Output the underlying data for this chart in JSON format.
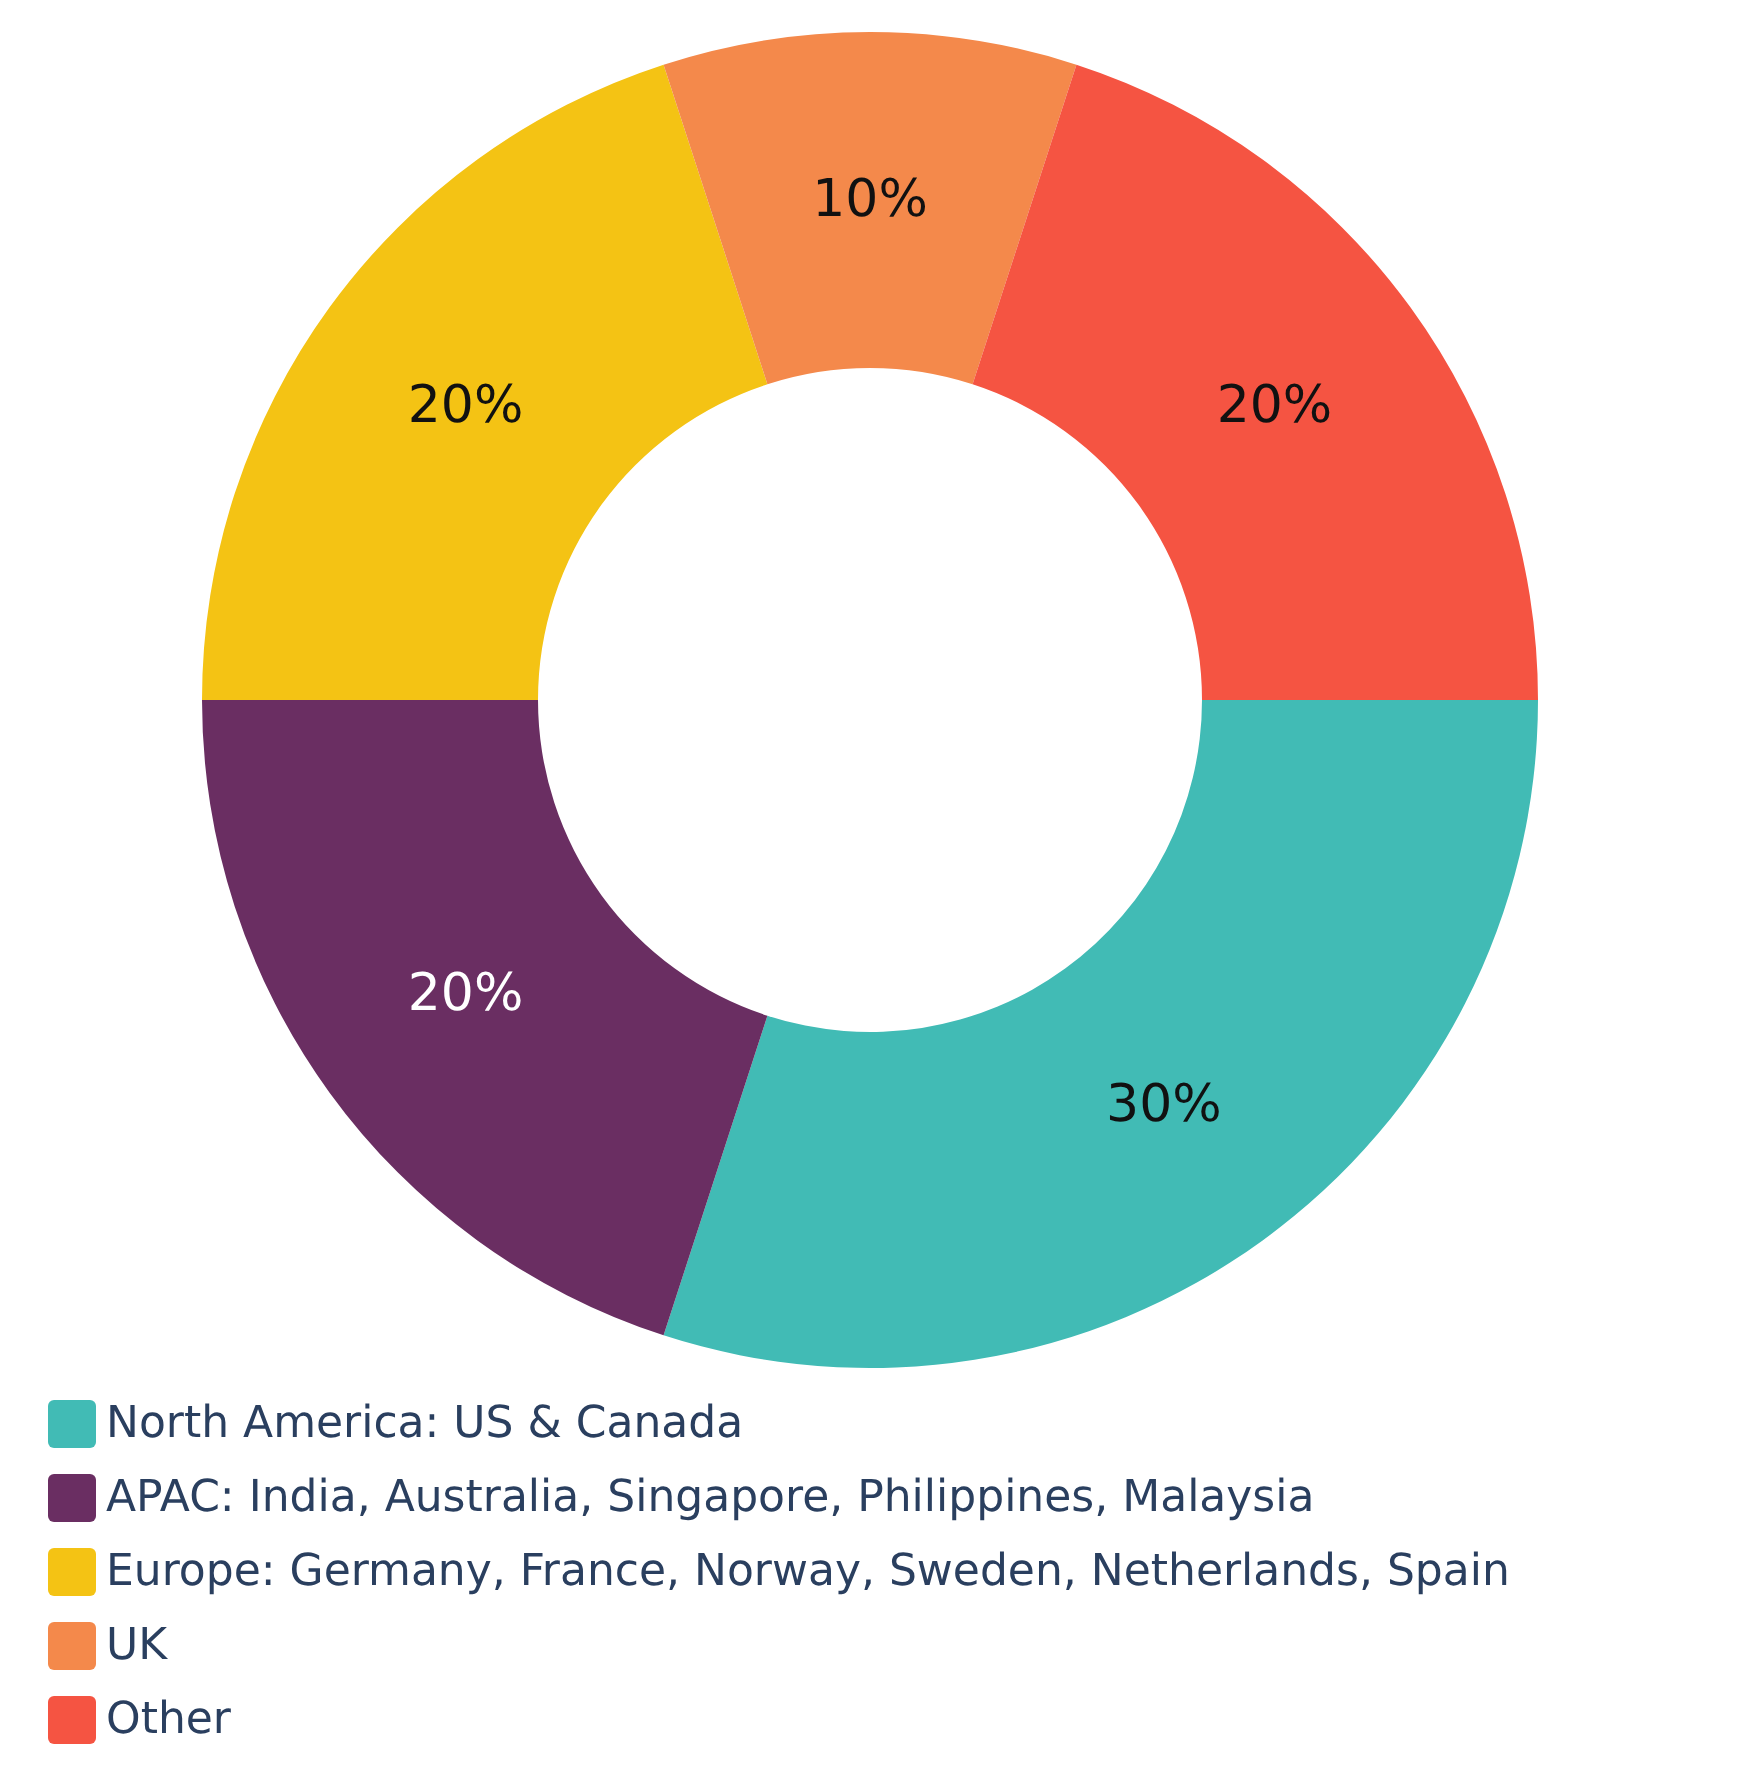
{
  "chart_data": {
    "type": "donut",
    "categories": [
      "North America: US & Canada",
      "APAC: India, Australia, Singapore, Philippines, Malaysia",
      "Europe: Germany, France, Norway, Sweden, Netherlands, Spain",
      "UK",
      "Other"
    ],
    "values": [
      30,
      20,
      20,
      10,
      20
    ],
    "colors": [
      "#41bbb5",
      "#6a2e62",
      "#f4c314",
      "#f4894b",
      "#f55442"
    ],
    "value_labels": [
      "30%",
      "20%",
      "20%",
      "10%",
      "20%"
    ],
    "legend": "bottom left"
  }
}
